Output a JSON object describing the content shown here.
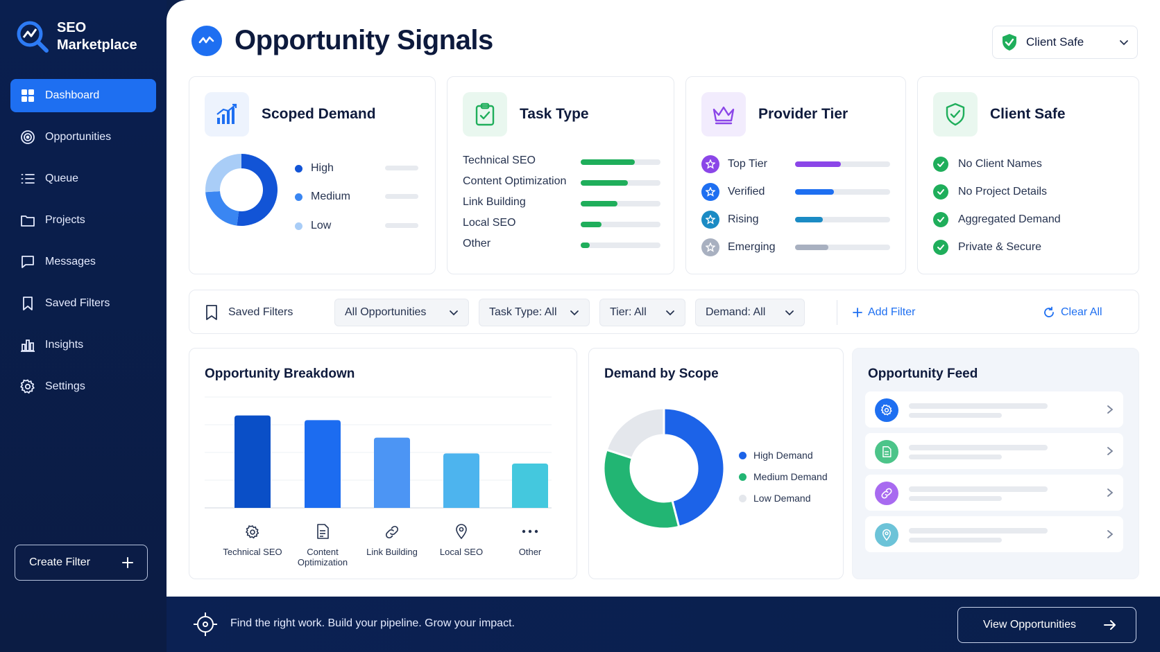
{
  "brand": {
    "name_line1": "SEO",
    "name_line2": "Marketplace"
  },
  "sidebar": {
    "items": [
      {
        "label": "Dashboard",
        "icon": "dashboard-icon",
        "active": true
      },
      {
        "label": "Opportunities",
        "icon": "target-icon"
      },
      {
        "label": "Queue",
        "icon": "list-icon"
      },
      {
        "label": "Projects",
        "icon": "folder-icon"
      },
      {
        "label": "Messages",
        "icon": "message-icon"
      },
      {
        "label": "Saved Filters",
        "icon": "bookmark-icon"
      },
      {
        "label": "Insights",
        "icon": "bar-chart-icon"
      },
      {
        "label": "Settings",
        "icon": "gear-icon"
      }
    ],
    "create_filter": "Create Filter"
  },
  "header": {
    "title": "Opportunity Signals",
    "client_select": "Client Safe"
  },
  "cards": {
    "scoped_demand": {
      "title": "Scoped Demand",
      "legend": [
        "High",
        "Medium",
        "Low"
      ],
      "values": [
        52,
        22,
        26
      ]
    },
    "task_type": {
      "title": "Task Type",
      "rows": [
        {
          "label": "Technical SEO",
          "level": 0.68
        },
        {
          "label": "Content Optimization",
          "level": 0.59
        },
        {
          "label": "Link Building",
          "level": 0.46
        },
        {
          "label": "Local SEO",
          "level": 0.26
        },
        {
          "label": "Other",
          "level": 0.11
        }
      ]
    },
    "provider_tier": {
      "title": "Provider Tier",
      "rows": [
        {
          "label": "Top Tier",
          "level": 0.48,
          "color": "#8b46e8"
        },
        {
          "label": "Verified",
          "level": 0.41,
          "color": "#1e6ff1"
        },
        {
          "label": "Rising",
          "level": 0.29,
          "color": "#1b8bc4"
        },
        {
          "label": "Emerging",
          "level": 0.35,
          "color": "#a8b0c0"
        }
      ]
    },
    "client_safe": {
      "title": "Client Safe",
      "rows": [
        "No Client Names",
        "No Project Details",
        "Aggregated Demand",
        "Private & Secure"
      ]
    }
  },
  "filters": {
    "saved": "Saved Filters",
    "opportunities": "All Opportunities",
    "task_type": "Task Type: All",
    "tier": "Tier: All",
    "demand": "Demand: All",
    "add": "Add Filter",
    "clear": "Clear All"
  },
  "breakdown": {
    "title": "Opportunity Breakdown"
  },
  "demand": {
    "title": "Demand by Scope"
  },
  "feed": {
    "title": "Opportunity Feed",
    "items": [
      "gear-icon",
      "document-icon",
      "link-icon",
      "location-pin-icon"
    ]
  },
  "footer": {
    "tagline": "Find the right work. Build your pipeline. Grow your impact.",
    "cta": "View Opportunities"
  },
  "chart_data": [
    {
      "type": "bar",
      "title": "Opportunity Breakdown",
      "categories": [
        "Technical SEO",
        "Content Optimization",
        "Link Building",
        "Local SEO",
        "Other"
      ],
      "values": [
        100,
        95,
        76,
        59,
        48
      ],
      "colors": [
        "#0a4fc7",
        "#1c6cf0",
        "#4c95f4",
        "#4db4ee",
        "#44c8de"
      ],
      "ylim": [
        0,
        120
      ]
    },
    {
      "type": "pie",
      "title": "Demand by Scope",
      "categories": [
        "High Demand",
        "Medium Demand",
        "Low Demand"
      ],
      "values": [
        46,
        34,
        20
      ],
      "colors": [
        "#1c63e8",
        "#22b573",
        "#e4e7ec"
      ]
    }
  ]
}
